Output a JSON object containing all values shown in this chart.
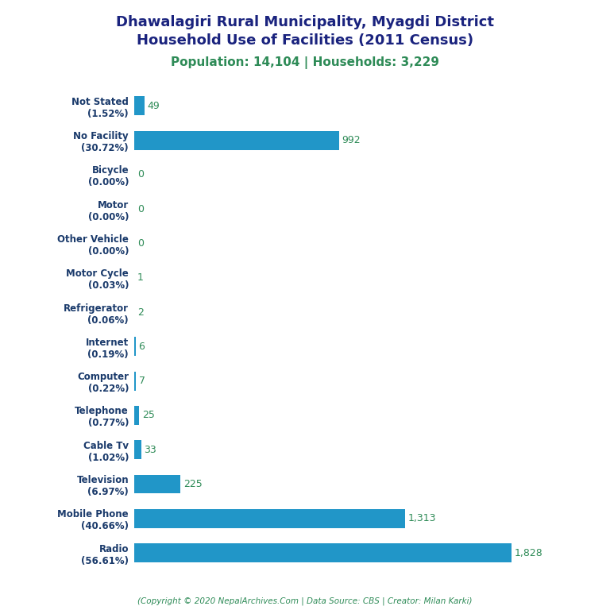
{
  "title_line1": "Dhawalagiri Rural Municipality, Myagdi District",
  "title_line2": "Household Use of Facilities (2011 Census)",
  "subtitle": "Population: 14,104 | Households: 3,229",
  "categories": [
    "Not Stated\n(1.52%)",
    "No Facility\n(30.72%)",
    "Bicycle\n(0.00%)",
    "Motor\n(0.00%)",
    "Other Vehicle\n(0.00%)",
    "Motor Cycle\n(0.03%)",
    "Refrigerator\n(0.06%)",
    "Internet\n(0.19%)",
    "Computer\n(0.22%)",
    "Telephone\n(0.77%)",
    "Cable Tv\n(1.02%)",
    "Television\n(6.97%)",
    "Mobile Phone\n(40.66%)",
    "Radio\n(56.61%)"
  ],
  "values": [
    49,
    992,
    0,
    0,
    0,
    1,
    2,
    6,
    7,
    25,
    33,
    225,
    1313,
    1828
  ],
  "bar_color": "#2196C8",
  "value_color": "#2E8B57",
  "title_color": "#1a237e",
  "subtitle_color": "#2E8B57",
  "ylabel_color": "#1a3a6b",
  "footer": "(Copyright © 2020 NepalArchives.Com | Data Source: CBS | Creator: Milan Karki)",
  "footer_color": "#2E8B57",
  "xlim": [
    0,
    2100
  ],
  "background_color": "#ffffff"
}
